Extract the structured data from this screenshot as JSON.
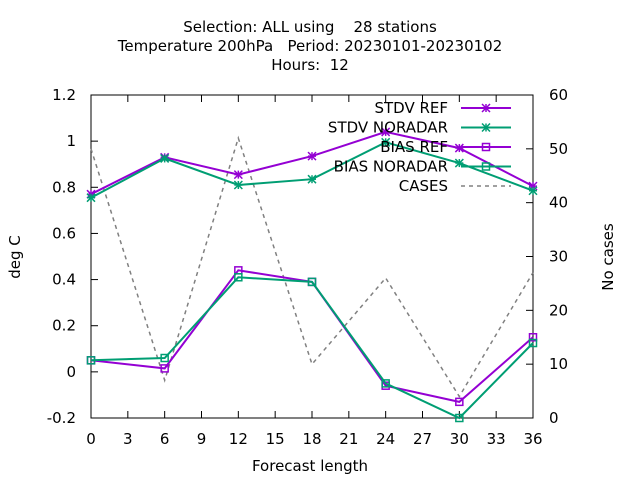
{
  "chart_data": {
    "type": "line",
    "title_lines": [
      "Selection: ALL using    28 stations",
      "Temperature 200hPa   Period: 20230101-20230102",
      "Hours:  12"
    ],
    "xlabel": "Forecast length",
    "ylabel": "deg C",
    "y2label": "No cases",
    "xlim": [
      0,
      36
    ],
    "ylim": [
      -0.2,
      1.2
    ],
    "y2lim": [
      0,
      60
    ],
    "xticks": [
      "0",
      "3",
      "6",
      "9",
      "12",
      "15",
      "18",
      "21",
      "24",
      "27",
      "30",
      "33",
      "36"
    ],
    "yticks": [
      "-0.2",
      "0",
      "0.2",
      "0.4",
      "0.6",
      "0.8",
      "1",
      "1.2"
    ],
    "y2ticks": [
      "0",
      "10",
      "20",
      "30",
      "40",
      "50",
      "60"
    ],
    "grid": false,
    "legend_position": "top-right",
    "series": [
      {
        "name": "STDV REF",
        "axis": "y1",
        "color": "#9400d3",
        "marker": "star",
        "dash": false,
        "x": [
          0,
          6,
          12,
          18,
          24,
          30,
          36
        ],
        "values": [
          0.77,
          0.93,
          0.855,
          0.935,
          1.04,
          0.97,
          0.805
        ]
      },
      {
        "name": "STDV NORADAR",
        "axis": "y1",
        "color": "#009e73",
        "marker": "star",
        "dash": false,
        "x": [
          0,
          6,
          12,
          18,
          24,
          30,
          36
        ],
        "values": [
          0.755,
          0.925,
          0.81,
          0.835,
          0.995,
          0.905,
          0.785
        ]
      },
      {
        "name": "BIAS REF",
        "axis": "y1",
        "color": "#9400d3",
        "marker": "square",
        "dash": false,
        "x": [
          0,
          6,
          12,
          18,
          24,
          30,
          36
        ],
        "values": [
          0.05,
          0.015,
          0.44,
          0.39,
          -0.06,
          -0.13,
          0.15
        ]
      },
      {
        "name": "BIAS NORADAR",
        "axis": "y1",
        "color": "#009e73",
        "marker": "square",
        "dash": false,
        "x": [
          0,
          6,
          12,
          18,
          24,
          30,
          36
        ],
        "values": [
          0.05,
          0.06,
          0.41,
          0.39,
          -0.05,
          -0.2,
          0.125
        ]
      },
      {
        "name": "CASES",
        "axis": "y2",
        "color": "#808080",
        "marker": "none",
        "dash": true,
        "x": [
          0,
          6,
          12,
          18,
          24,
          30,
          36
        ],
        "values": [
          50,
          7,
          52,
          10,
          26,
          4,
          27
        ]
      }
    ]
  }
}
